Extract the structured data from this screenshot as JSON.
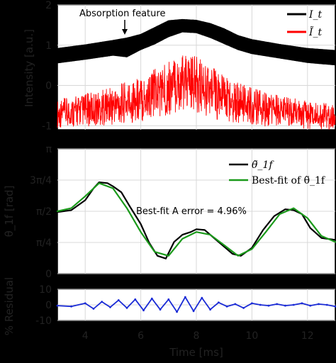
{
  "chart_data": [
    {
      "type": "line",
      "panel": "intensity",
      "ylabel": "Intensity [a.u.]",
      "ylim": [
        -1.1,
        2.0
      ],
      "xlim": [
        3,
        13
      ],
      "yticks": [
        "-1",
        "0",
        "1",
        "2"
      ],
      "legend_placement": "top-right",
      "legend": [
        {
          "label": "I_t",
          "color": "#000000"
        },
        {
          "label": "Ĩ_t",
          "color": "#ff0000"
        }
      ],
      "annotation": "Absorption feature",
      "annotation_x": 5.5,
      "series": [
        {
          "name": "I_t",
          "color": "#000000",
          "x": [
            3,
            4,
            5,
            5.5,
            6,
            6.5,
            7,
            7.5,
            8,
            8.5,
            9,
            9.5,
            10,
            11,
            12,
            13
          ],
          "envelope_upper": [
            0.93,
            1.02,
            1.13,
            1.19,
            1.28,
            1.45,
            1.62,
            1.65,
            1.63,
            1.55,
            1.42,
            1.25,
            1.15,
            1.03,
            0.93,
            0.88
          ],
          "envelope_lower": [
            0.55,
            0.64,
            0.74,
            0.7,
            0.88,
            1.02,
            1.2,
            1.32,
            1.3,
            1.18,
            1.03,
            0.88,
            0.78,
            0.67,
            0.56,
            0.5
          ]
        },
        {
          "name": "Ĩ_t",
          "color": "#ff0000",
          "x": [
            3,
            4,
            5,
            6,
            7,
            7.5,
            8,
            8.5,
            9,
            10,
            11,
            12,
            13
          ],
          "envelope_upper": [
            -0.35,
            -0.2,
            -0.02,
            0.25,
            0.62,
            0.78,
            0.72,
            0.52,
            0.28,
            -0.05,
            -0.25,
            -0.38,
            -0.45
          ],
          "envelope_lower": [
            -1.05,
            -1.02,
            -0.98,
            -0.92,
            -0.75,
            -0.62,
            -0.68,
            -0.8,
            -0.9,
            -1.0,
            -1.05,
            -1.08,
            -1.1
          ]
        }
      ]
    },
    {
      "type": "line",
      "panel": "theta",
      "ylabel": "θ_1f [rad]",
      "ylim": [
        0,
        3.1416
      ],
      "xlim": [
        3,
        13
      ],
      "yticks": [
        "0",
        "π/4",
        "π/2",
        "3π/4",
        "π"
      ],
      "legend_placement": "top-right",
      "legend": [
        {
          "label": "θ̃_1f",
          "color": "#000000"
        },
        {
          "label": "Best-fit of θ̃_1f",
          "color": "#1a9a1a"
        }
      ],
      "annotation": "Best-fit A error = 4.96%",
      "series": [
        {
          "name": "θ̃_1f",
          "color": "#000000",
          "x": [
            3,
            3.5,
            4,
            4.3,
            4.5,
            4.8,
            5.0,
            5.3,
            5.6,
            6.0,
            6.3,
            6.6,
            6.9,
            7.2,
            7.5,
            7.8,
            8.0,
            8.3,
            8.6,
            9.0,
            9.3,
            9.6,
            10.0,
            10.4,
            10.8,
            11.2,
            11.5,
            11.8,
            12.1,
            12.5,
            13
          ],
          "y": [
            1.55,
            1.6,
            1.85,
            2.15,
            2.3,
            2.28,
            2.2,
            2.05,
            1.7,
            1.25,
            0.78,
            0.45,
            0.38,
            0.8,
            0.98,
            1.05,
            1.12,
            1.1,
            0.92,
            0.68,
            0.5,
            0.45,
            0.65,
            1.1,
            1.45,
            1.62,
            1.6,
            1.5,
            1.15,
            0.9,
            0.85
          ]
        },
        {
          "name": "Best-fit of θ̃_1f",
          "color": "#1a9a1a",
          "x": [
            3,
            3.5,
            4,
            4.5,
            5.0,
            5.5,
            6.0,
            6.5,
            7.0,
            7.5,
            8.0,
            8.5,
            9.0,
            9.5,
            10.0,
            10.5,
            11.0,
            11.5,
            12.0,
            12.5,
            13
          ],
          "y": [
            1.57,
            1.65,
            1.95,
            2.28,
            2.15,
            1.65,
            1.05,
            0.55,
            0.45,
            0.88,
            1.05,
            0.98,
            0.72,
            0.45,
            0.62,
            1.05,
            1.5,
            1.65,
            1.4,
            0.95,
            0.8
          ]
        }
      ]
    },
    {
      "type": "line",
      "panel": "residual",
      "ylabel": "% Residual",
      "ylim": [
        -10,
        10
      ],
      "xlim": [
        3,
        13
      ],
      "yticks": [
        "-10",
        "0",
        "10"
      ],
      "xticks": [
        "4",
        "6",
        "8",
        "10",
        "12"
      ],
      "xlabel": "Time [ms]",
      "series": [
        {
          "name": "residual",
          "color": "#1a2bd6",
          "x": [
            3,
            3.5,
            4,
            4.3,
            4.6,
            4.9,
            5.2,
            5.5,
            5.8,
            6.1,
            6.4,
            6.7,
            7.0,
            7.3,
            7.6,
            7.9,
            8.2,
            8.5,
            8.8,
            9.1,
            9.4,
            9.7,
            10.0,
            10.3,
            10.6,
            10.9,
            11.2,
            11.5,
            11.8,
            12.1,
            12.4,
            12.7,
            13
          ],
          "y": [
            -0.5,
            -1,
            1,
            -2.5,
            2,
            -1.5,
            3,
            -2,
            3.5,
            -3.5,
            4,
            -3,
            3.5,
            -4.5,
            5,
            -4,
            4.5,
            -3,
            1.5,
            -1,
            0.5,
            -2,
            1,
            0,
            -0.5,
            0.5,
            -0.5,
            0,
            1,
            -0.5,
            0.5,
            0,
            -1
          ]
        }
      ]
    }
  ]
}
